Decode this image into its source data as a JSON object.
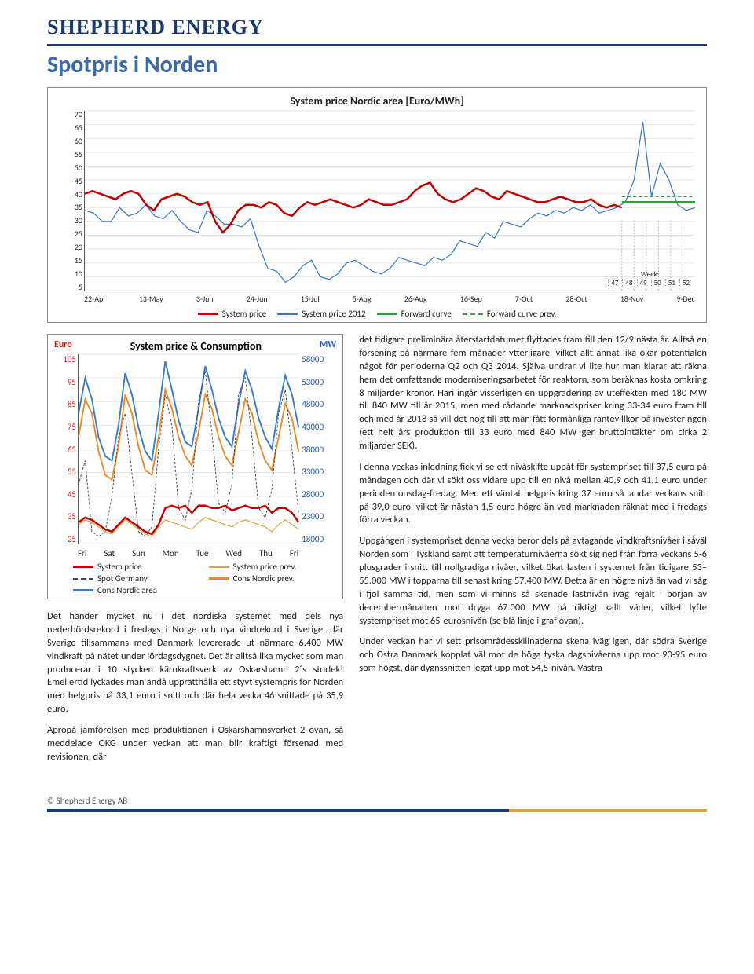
{
  "logo": "SHEPHERD ENERGY",
  "page_title": "Spotpris i Norden",
  "chart1": {
    "title": "System price Nordic area  [Euro/MWh]",
    "y_ticks": [
      "70",
      "65",
      "60",
      "55",
      "50",
      "45",
      "40",
      "35",
      "30",
      "25",
      "20",
      "15",
      "10",
      "5"
    ],
    "x_ticks": [
      "22-Apr",
      "13-May",
      "3-Jun",
      "24-Jun",
      "15-Jul",
      "5-Aug",
      "26-Aug",
      "16-Sep",
      "7-Oct",
      "28-Oct",
      "18-Nov",
      "9-Dec"
    ],
    "legend": [
      {
        "label": "System price",
        "color": "#c00000",
        "thick": true,
        "dashed": false
      },
      {
        "label": "System price 2012",
        "color": "#3a78c9",
        "thick": false,
        "dashed": false
      },
      {
        "label": "Forward curve",
        "color": "#2e9e3f",
        "thick": true,
        "dashed": false
      },
      {
        "label": "Forward curve prev.",
        "color": "#2e9e3f",
        "thick": false,
        "dashed": true
      }
    ],
    "week_label": "Week:",
    "week_nums": [
      "47",
      "48",
      "49",
      "50",
      "51",
      "52"
    ],
    "series_red": [
      40,
      41,
      40,
      39,
      38,
      40,
      41,
      40,
      36,
      34,
      38,
      39,
      40,
      39,
      37,
      36,
      37,
      30,
      26,
      29,
      34,
      36,
      36,
      35,
      37,
      36,
      33,
      32,
      35,
      37,
      36,
      37,
      38,
      37,
      36,
      35,
      36,
      38,
      37,
      36,
      36,
      37,
      38,
      41,
      43,
      44,
      40,
      38,
      37,
      38,
      40,
      42,
      41,
      39,
      38,
      41,
      40,
      39,
      38,
      37,
      37,
      38,
      39,
      38,
      37,
      37,
      38,
      36,
      35,
      36,
      35
    ],
    "series_blue": [
      34,
      33,
      30,
      30,
      35,
      32,
      33,
      36,
      32,
      31,
      34,
      30,
      27,
      26,
      34,
      32,
      29,
      29,
      28,
      31,
      21,
      13,
      12,
      8,
      10,
      14,
      16,
      10,
      9,
      11,
      15,
      16,
      14,
      12,
      11,
      13,
      17,
      16,
      15,
      14,
      17,
      16,
      18,
      23,
      22,
      21,
      26,
      24,
      30,
      29,
      28,
      31,
      33,
      32,
      34,
      33,
      35,
      34,
      36,
      33,
      34,
      35,
      37,
      45,
      66,
      39,
      51,
      45,
      36,
      34,
      35
    ],
    "green_y": 37,
    "green_prev_y": 39
  },
  "chart2": {
    "left_label": "Euro",
    "title": "System price & Consumption",
    "right_label": "MW",
    "yl_ticks": [
      "105",
      "95",
      "85",
      "75",
      "65",
      "55",
      "45",
      "35",
      "25"
    ],
    "yr_ticks": [
      "58000",
      "53000",
      "48000",
      "43000",
      "38000",
      "33000",
      "28000",
      "23000",
      "18000"
    ],
    "x_ticks": [
      "Fri",
      "Sat",
      "Sun",
      "Mon",
      "Tue",
      "Wed",
      "Thu",
      "Fri"
    ],
    "legend": [
      {
        "label": "System price",
        "color": "#c00000",
        "thick": true,
        "dashed": false
      },
      {
        "label": "System price prev.",
        "color": "#d9a441",
        "thick": false,
        "dashed": false
      },
      {
        "label": "Spot Germany",
        "color": "#444",
        "thick": false,
        "dashed": true
      },
      {
        "label": "Cons Nordic prev.",
        "color": "#e88a2a",
        "thick": true,
        "dashed": false
      },
      {
        "label": "Cons Nordic area",
        "color": "#3a78c9",
        "thick": true,
        "dashed": false
      }
    ],
    "series": {
      "cons_blue": [
        80,
        95,
        86,
        70,
        62,
        60,
        75,
        97,
        88,
        74,
        64,
        60,
        80,
        102,
        90,
        77,
        68,
        66,
        82,
        100,
        90,
        78,
        70,
        66,
        84,
        98,
        90,
        78,
        70,
        65,
        82,
        96,
        88,
        74
      ],
      "cons_orange": [
        70,
        86,
        80,
        64,
        54,
        52,
        66,
        88,
        80,
        66,
        56,
        54,
        70,
        90,
        82,
        70,
        62,
        58,
        72,
        88,
        82,
        70,
        62,
        58,
        72,
        86,
        80,
        68,
        60,
        56,
        70,
        84,
        78,
        64
      ],
      "sys_red": [
        34,
        36,
        35,
        33,
        31,
        30,
        33,
        36,
        34,
        32,
        30,
        29,
        33,
        40,
        41,
        40,
        41,
        38,
        41,
        41,
        40,
        40,
        41,
        39,
        40,
        41,
        40,
        40,
        41,
        38,
        40,
        40,
        38,
        34
      ],
      "sys_prev": [
        33,
        35,
        34,
        32,
        30,
        29,
        32,
        35,
        33,
        31,
        29,
        28,
        32,
        35,
        34,
        33,
        32,
        31,
        34,
        36,
        35,
        34,
        33,
        32,
        34,
        35,
        34,
        33,
        32,
        30,
        33,
        35,
        33,
        31
      ],
      "spot_de": [
        50,
        60,
        30,
        28,
        30,
        45,
        70,
        80,
        55,
        30,
        28,
        32,
        65,
        88,
        75,
        40,
        35,
        48,
        85,
        98,
        72,
        42,
        38,
        50,
        88,
        95,
        70,
        40,
        36,
        48,
        80,
        90,
        65,
        38
      ]
    }
  },
  "body": {
    "left": [
      "Det händer mycket nu i det nordiska systemet med dels nya nederbördsrekord i fredags i Norge och nya vindrekord i Sverige, där Sverige tillsammans med Danmark levererade ut närmare 6.400 MW vindkraft på nätet under lördagsdygnet. Det är alltså lika mycket som man producerar i 10 stycken kärnkraftsverk av Oskarshamn 2´s storlek! Emellertid lyckades man ändå upprätthålla ett styvt systempris för Norden med helgpris på 33,1 euro i snitt och där hela vecka 46 snittade på 35,9 euro.",
      "Apropå jämförelsen med produktionen i Oskarshamnsverket 2 ovan, så meddelade OKG under veckan att man blir kraftigt försenad med revisionen, där"
    ],
    "right": [
      "det tidigare preliminära återstartdatumet flyttades fram till den 12/9 nästa år. Alltså en försening på närmare fem månader ytterligare, vilket allt annat lika ökar potentialen något för perioderna Q2 och Q3 2014. Själva undrar vi lite hur man klarar att räkna hem det omfattande moderniseringsarbetet för reaktorn, som beräknas kosta omkring 8 miljarder kronor. Häri ingår visserligen en uppgradering av uteffekten med 180 MW till 840 MW till år 2015, men med rådande marknadspriser kring 33-34 euro fram till och med år 2018 så vill det nog till att man fått förmånliga räntevillkor på investeringen (ett helt års produktion till 33 euro med 840 MW ger bruttointäkter om cirka 2 miljarder SEK).",
      "I denna veckas inledning fick vi se ett nivåskifte uppåt för systempriset till 37,5 euro på måndagen och där vi sökt oss vidare upp till en nivå mellan 40,9 och 41,1 euro under perioden onsdag-fredag. Med ett väntat helgpris kring 37 euro så landar veckans snitt på 39,0 euro, vilket är nästan 1,5 euro högre än vad marknaden räknat med i fredags förra veckan.",
      "Uppgången i systempriset denna vecka beror dels på avtagande vindkraftsnivåer i såväl Norden som i Tyskland samt att temperaturnivåerna sökt sig ned från förra veckans 5-6 plusgrader i snitt till nollgradiga nivåer, vilket ökat lasten i systemet från tidigare 53–55.000 MW i topparna till senast kring 57.400 MW. Detta är en högre nivå än vad vi såg i fjol samma tid, men som vi minns så skenade lastnivån iväg rejält i början av decembermånaden mot dryga 67.000 MW på riktigt kallt väder, vilket lyfte systempriset mot 65-eurosnivån (se blå linje i graf ovan).",
      "Under veckan har vi sett prisområdesskillnaderna skena iväg igen, där södra Sverige och Östra Danmark kopplat väl mot de höga tyska dagsnivåerna upp mot 90-95 euro som högst, där dygnssnitten legat upp mot 54,5-nivån. Västra"
    ]
  },
  "footer": "© Shepherd Energy AB"
}
